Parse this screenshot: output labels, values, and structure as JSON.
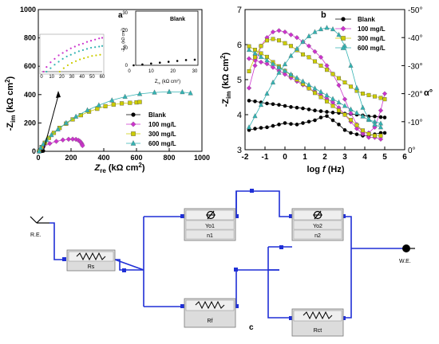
{
  "colors": {
    "blank": "#000000",
    "c100": "#cc33cc",
    "c300": "#cccc00",
    "c600": "#33b3b3",
    "wire": "#1f2fd6",
    "box_fill": "#dcdcdc"
  },
  "chart_data": [
    {
      "id": "a",
      "panel_label": "a",
      "type": "scatter",
      "title": "",
      "xlabel_main": "Z",
      "xlabel_sub": "re",
      "xlabel_unit": " (kΩ cm",
      "xlabel_sup": "2",
      "xlabel_close": ")",
      "ylabel_main": "-Z",
      "ylabel_sub": "im",
      "ylabel_unit": " (kΩ cm",
      "ylabel_sup": "2",
      "ylabel_close": ")",
      "xlim": [
        0,
        1000
      ],
      "ylim": [
        0,
        1000
      ],
      "xticks": [
        0,
        200,
        400,
        600,
        800,
        1000
      ],
      "yticks": [
        0,
        200,
        400,
        600,
        800,
        1000
      ],
      "legend_position": "right",
      "series": [
        {
          "name": "Blank",
          "key": "blank",
          "marker": "circle",
          "x": [
            2,
            6,
            10,
            14,
            18,
            22,
            26,
            30
          ],
          "y": [
            0,
            0.5,
            1,
            1.5,
            2,
            2.5,
            3,
            3.2
          ]
        },
        {
          "name": "100 mg/L",
          "key": "c100",
          "marker": "diamond",
          "x": [
            5,
            30,
            70,
            110,
            150,
            185,
            210,
            230,
            245,
            255,
            262,
            267,
            270
          ],
          "y": [
            0,
            30,
            55,
            70,
            80,
            85,
            86,
            84,
            78,
            70,
            60,
            50,
            40
          ]
        },
        {
          "name": "300 mg/L",
          "key": "c300",
          "marker": "square",
          "x": [
            5,
            20,
            40,
            65,
            95,
            130,
            170,
            210,
            260,
            310,
            360,
            410,
            460,
            510,
            560,
            600,
            620
          ],
          "y": [
            0,
            30,
            60,
            95,
            130,
            165,
            195,
            225,
            255,
            280,
            300,
            318,
            330,
            338,
            342,
            345,
            348
          ]
        },
        {
          "name": "600 mg/L",
          "key": "c600",
          "marker": "triangle",
          "x": [
            5,
            15,
            30,
            50,
            80,
            120,
            170,
            230,
            300,
            370,
            450,
            530,
            620,
            710,
            800,
            880,
            930
          ],
          "y": [
            0,
            25,
            50,
            80,
            115,
            155,
            200,
            245,
            290,
            325,
            360,
            385,
            405,
            415,
            420,
            418,
            410
          ]
        }
      ],
      "inset": {
        "title": "Blank",
        "xlabel_main": "Z",
        "xlabel_sub": "re",
        "xlabel_unit": " (kΩ cm",
        "xlabel_sup": "2",
        "xlabel_close": ")",
        "ylabel_main": "-Z",
        "ylabel_sub": "im",
        "ylabel_unit": " (kΩ cm",
        "ylabel_sup": "2",
        "ylabel_close": ")",
        "xlim": [
          0,
          30
        ],
        "ylim": [
          0,
          30
        ],
        "xticks": [
          0,
          10,
          20,
          30
        ],
        "yticks": [
          0,
          10,
          20,
          30
        ],
        "series_key": "blank"
      },
      "zoom_inset": {
        "xlim": [
          0,
          60
        ],
        "ylim": [
          0,
          30
        ],
        "xticks": [
          0,
          10,
          20,
          30,
          40,
          50,
          60
        ],
        "series": [
          {
            "key": "c100",
            "x": [
              2,
              5,
              9,
              13,
              17,
              21,
              25,
              29,
              33,
              37,
              41,
              45,
              49,
              53,
              57,
              60
            ],
            "y": [
              0,
              4,
              8,
              11,
              14,
              16,
              18,
              20,
              21.5,
              23,
              24,
              25.5,
              26.5,
              27.5,
              28.5,
              29
            ]
          },
          {
            "key": "c600",
            "x": [
              5,
              9,
              13,
              17,
              21,
              25,
              29,
              33,
              37,
              41,
              45,
              49,
              53,
              57,
              60
            ],
            "y": [
              0,
              3,
              6,
              8.5,
              11,
              13,
              14.5,
              16,
              17.5,
              18.5,
              19.5,
              20.5,
              21,
              21.5,
              22
            ]
          },
          {
            "key": "c300",
            "x": [
              18,
              22,
              26,
              30,
              34,
              38,
              42,
              46,
              50,
              54,
              58
            ],
            "y": [
              0,
              3,
              5.5,
              7.5,
              9,
              10.5,
              11.5,
              12.5,
              13.5,
              14,
              14.5
            ]
          }
        ]
      }
    },
    {
      "id": "b",
      "panel_label": "b",
      "type": "line",
      "title": "",
      "xlabel_main": "log ",
      "xlabel_italic": "f",
      "xlabel_unit": " (Hz)",
      "ylabel_main": "-Z",
      "ylabel_sub": "im",
      "ylabel_unit": " (kΩ cm",
      "ylabel_sup": "2",
      "ylabel_close": ")",
      "y2label": "α°",
      "xlim": [
        -2,
        6
      ],
      "ylim": [
        3,
        7
      ],
      "y2lim": [
        0,
        -50
      ],
      "xticks": [
        -2,
        -1,
        0,
        1,
        2,
        3,
        4,
        5,
        6
      ],
      "yticks": [
        3,
        4,
        5,
        6,
        7
      ],
      "y2ticks": [
        "0°",
        "-10°",
        "-20°",
        "-30°",
        "-40°",
        "-50°"
      ],
      "legend_position": "top-right",
      "series": [
        {
          "name": "Blank",
          "key": "blank",
          "marker": "circle",
          "x": [
            -1.8,
            -1.5,
            -1.2,
            -0.9,
            -0.6,
            -0.3,
            0,
            0.3,
            0.6,
            0.9,
            1.2,
            1.5,
            1.8,
            2.1,
            2.4,
            2.7,
            3.0,
            3.3,
            3.6,
            3.9,
            4.2,
            4.5,
            4.8,
            5.0
          ],
          "y": [
            4.4,
            4.38,
            4.35,
            4.32,
            4.3,
            4.28,
            4.25,
            4.22,
            4.2,
            4.18,
            4.15,
            4.12,
            4.1,
            4.08,
            4.06,
            4.05,
            4.03,
            4.02,
            4.0,
            3.98,
            3.95,
            3.95,
            3.93,
            3.92
          ]
        },
        {
          "name": "Blank",
          "key": "blank",
          "marker": "circle",
          "axis": "y2",
          "x": [
            -1.8,
            -1.5,
            -1.2,
            -0.9,
            -0.6,
            -0.3,
            0,
            0.3,
            0.6,
            0.9,
            1.2,
            1.5,
            1.8,
            2.1,
            2.4,
            2.7,
            3.0,
            3.3,
            3.6,
            3.9,
            4.2,
            4.5,
            4.8,
            5.0
          ],
          "y": [
            -7,
            -7.5,
            -7.8,
            -8,
            -8.5,
            -9,
            -9.5,
            -9.2,
            -9,
            -9.5,
            -10,
            -10.5,
            -11.5,
            -12,
            -10.5,
            -9,
            -7,
            -6,
            -5.5,
            -5,
            -5,
            -5.5,
            -6,
            -6
          ]
        },
        {
          "name": "100 mg/L",
          "key": "c100",
          "marker": "diamond",
          "x": [
            -1.8,
            -1.5,
            -1.2,
            -0.9,
            -0.6,
            -0.3,
            0,
            0.3,
            0.6,
            0.9,
            1.2,
            1.5,
            1.8,
            2.1,
            2.4,
            2.7,
            3.0,
            3.3,
            3.6,
            3.9,
            4.2,
            4.5,
            4.8
          ],
          "y": [
            5.6,
            5.55,
            5.5,
            5.45,
            5.35,
            5.25,
            5.15,
            5.05,
            4.95,
            4.85,
            4.75,
            4.65,
            4.55,
            4.45,
            4.35,
            4.2,
            4.0,
            3.8,
            3.6,
            3.45,
            3.35,
            3.35,
            3.3
          ]
        },
        {
          "name": "100 mg/L",
          "key": "c100",
          "marker": "diamond",
          "axis": "y2",
          "x": [
            -1.8,
            -1.5,
            -1.2,
            -0.9,
            -0.6,
            -0.3,
            0,
            0.3,
            0.6,
            0.9,
            1.2,
            1.5,
            1.8,
            2.1,
            2.4,
            2.7,
            3.0,
            3.3,
            3.6,
            3.9,
            4.2,
            4.5,
            4.8,
            5.0
          ],
          "y": [
            -22,
            -30,
            -37,
            -40,
            -42,
            -42.5,
            -42,
            -41,
            -40,
            -38.5,
            -37,
            -35,
            -33,
            -30,
            -27,
            -23,
            -18,
            -13,
            -9,
            -6,
            -6,
            -8,
            -14,
            -20
          ]
        },
        {
          "name": "300 mg/L",
          "key": "c300",
          "marker": "square",
          "x": [
            -1.8,
            -1.5,
            -1.2,
            -0.9,
            -0.6,
            -0.3,
            0,
            0.3,
            0.6,
            0.9,
            1.2,
            1.5,
            1.8,
            2.1,
            2.4,
            2.7,
            3.0,
            3.3,
            3.6,
            3.9,
            4.2,
            4.5,
            4.8
          ],
          "y": [
            5.95,
            5.85,
            5.75,
            5.65,
            5.5,
            5.38,
            5.25,
            5.12,
            5.0,
            4.88,
            4.75,
            4.62,
            4.5,
            4.38,
            4.25,
            4.12,
            4.0,
            3.85,
            3.7,
            3.55,
            3.45,
            3.4,
            3.4
          ]
        },
        {
          "name": "300 mg/L",
          "key": "c300",
          "marker": "square",
          "axis": "y2",
          "x": [
            -1.8,
            -1.5,
            -1.2,
            -0.9,
            -0.6,
            -0.3,
            0,
            0.3,
            0.6,
            0.9,
            1.2,
            1.5,
            1.8,
            2.1,
            2.4,
            2.7,
            3.0,
            3.3,
            3.6,
            3.9,
            4.2,
            4.5,
            4.8,
            5.0
          ],
          "y": [
            -28,
            -33,
            -37,
            -39,
            -39.5,
            -39,
            -38,
            -37,
            -35.5,
            -34,
            -33,
            -31.5,
            -30,
            -28.5,
            -27,
            -25.5,
            -24,
            -22.5,
            -21,
            -20,
            -19.5,
            -19,
            -18.5,
            -18
          ]
        },
        {
          "name": "600 mg/L",
          "key": "c600",
          "marker": "triangle",
          "x": [
            -1.8,
            -1.5,
            -1.2,
            -0.9,
            -0.6,
            -0.3,
            0,
            0.3,
            0.6,
            0.9,
            1.2,
            1.5,
            1.8,
            2.1,
            2.4,
            2.7,
            3.0,
            3.3,
            3.6,
            3.9,
            4.2,
            4.5,
            4.8
          ],
          "y": [
            5.85,
            5.75,
            5.65,
            5.55,
            5.45,
            5.35,
            5.25,
            5.15,
            5.05,
            4.95,
            4.85,
            4.75,
            4.65,
            4.55,
            4.45,
            4.35,
            4.25,
            4.15,
            4.05,
            3.95,
            3.85,
            3.8,
            3.75
          ]
        },
        {
          "name": "600 mg/L",
          "key": "c600",
          "marker": "triangle",
          "axis": "y2",
          "x": [
            -1.8,
            -1.5,
            -1.2,
            -0.9,
            -0.6,
            -0.3,
            0,
            0.3,
            0.6,
            0.9,
            1.2,
            1.5,
            1.8,
            2.1,
            2.4,
            2.7,
            3.0,
            3.3,
            3.6,
            3.9,
            4.2,
            4.5,
            4.8
          ],
          "y": [
            -8,
            -12,
            -16,
            -20,
            -24,
            -27.5,
            -30.5,
            -33.5,
            -36,
            -38.5,
            -40.5,
            -42,
            -43,
            -43.5,
            -43,
            -41,
            -37,
            -30,
            -22,
            -15,
            -11,
            -9,
            -8
          ]
        }
      ]
    }
  ],
  "circuit": {
    "panel_label": "c",
    "re_label": "R.E.",
    "we_label": "W.E.",
    "rs_label": "Rs",
    "yo1_label": "Yo1",
    "n1_label": "n1",
    "rf_label": "Rf",
    "yo2_label": "Yo2",
    "n2_label": "n2",
    "rct_label": "Rct"
  }
}
